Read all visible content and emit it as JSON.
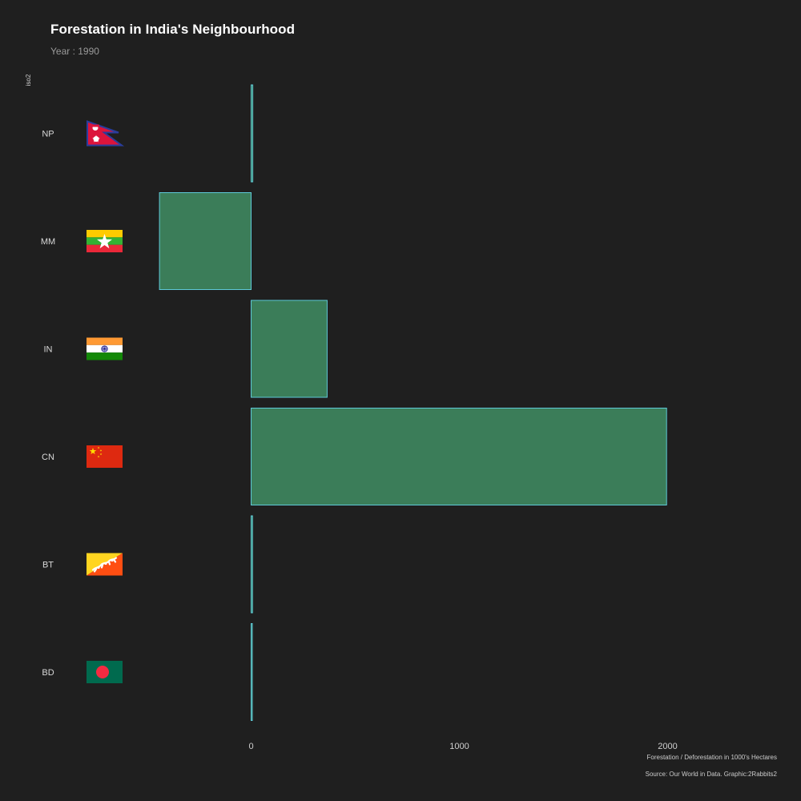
{
  "header": {
    "title": "Forestation in India's Neighbourhood",
    "subtitle": "Year : 1990"
  },
  "footer": {
    "xlabel": "Forestation / Deforestation in 1000's Hectares",
    "caption": "Source: Our World in Data. Graphic:2Rabbits2"
  },
  "colors": {
    "background": "#1f1f1f",
    "bar_fill": "#3b7d59",
    "bar_stroke": "#5ec9d8"
  },
  "chart_data": {
    "type": "bar",
    "orientation": "horizontal",
    "title": "Forestation in India's Neighbourhood",
    "subtitle": "Year : 1990",
    "xlabel": "Forestation / Deforestation in 1000's Hectares",
    "ylabel": "iso2",
    "categories": [
      "NP",
      "MM",
      "IN",
      "CN",
      "BT",
      "BD"
    ],
    "values": [
      8,
      -440,
      365,
      1995,
      7,
      1
    ],
    "flags": [
      "nepal-flag",
      "myanmar-flag",
      "india-flag",
      "china-flag",
      "bhutan-flag",
      "bangladesh-flag"
    ],
    "xlim": [
      -1200,
      2520
    ],
    "xticks": [
      0,
      1000,
      2000
    ],
    "grid": false,
    "legend": "none"
  }
}
